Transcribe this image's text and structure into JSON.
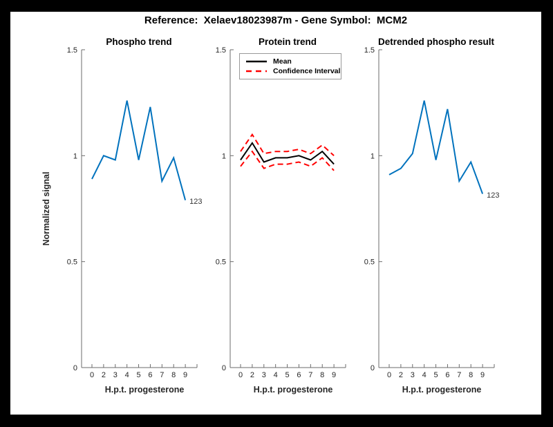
{
  "figure": {
    "title": "Reference:  Xelaev18023987m - Gene Symbol:  MCM2",
    "frame_color": "#000000",
    "canvas_color": "#ffffff"
  },
  "colors": {
    "phospho_line": "#0072BD",
    "mean_line": "#000000",
    "ci_line": "#FF0000",
    "spine": "#6b6b6b",
    "tick_text": "#262626"
  },
  "legend": {
    "position": "northwest-inside",
    "entries": [
      {
        "label": "Mean",
        "style": "solid",
        "color": "#000000"
      },
      {
        "label": "Confidence Interval",
        "style": "dashed",
        "color": "#FF0000"
      }
    ]
  },
  "chart_data": [
    {
      "type": "line",
      "title": "Phospho trend",
      "xlabel": "H.p.t. progesterone",
      "ylabel": "Normalized signal",
      "x": [
        0,
        2,
        3,
        4,
        5,
        6,
        7,
        8,
        9
      ],
      "x_tick_labels": [
        "0",
        "2",
        "3",
        "4",
        "5",
        "6",
        "7",
        "8",
        "9",
        ""
      ],
      "y_tick_values": [
        0,
        0.5,
        1,
        1.5
      ],
      "y_tick_labels": [
        "0",
        "0.5",
        "1",
        "1.5"
      ],
      "ylim": [
        0,
        1.5
      ],
      "grid": false,
      "series": [
        {
          "name": "phospho",
          "color": "#0072BD",
          "style": "solid",
          "values": [
            0.89,
            1.0,
            0.98,
            1.26,
            0.98,
            1.23,
            0.88,
            0.99,
            0.79
          ]
        }
      ],
      "end_annotation": "123"
    },
    {
      "type": "line",
      "title": "Protein trend",
      "xlabel": "H.p.t. progesterone",
      "ylabel": "Normalized signal",
      "x": [
        0,
        2,
        3,
        4,
        5,
        6,
        7,
        8,
        9
      ],
      "x_tick_labels": [
        "0",
        "2",
        "3",
        "4",
        "5",
        "6",
        "7",
        "8",
        "9",
        ""
      ],
      "y_tick_values": [
        0,
        0.5,
        1,
        1.5
      ],
      "y_tick_labels": [
        "0",
        "0.5",
        "1",
        "1.5"
      ],
      "ylim": [
        0,
        1.5
      ],
      "grid": false,
      "legend_position": "northwest",
      "series": [
        {
          "name": "Mean",
          "color": "#000000",
          "style": "solid",
          "values": [
            0.98,
            1.06,
            0.97,
            0.99,
            0.99,
            1.0,
            0.98,
            1.02,
            0.96
          ]
        },
        {
          "name": "Confidence Interval upper",
          "color": "#FF0000",
          "style": "dashed",
          "values": [
            1.02,
            1.1,
            1.01,
            1.02,
            1.02,
            1.03,
            1.01,
            1.05,
            1.0
          ]
        },
        {
          "name": "Confidence Interval lower",
          "color": "#FF0000",
          "style": "dashed",
          "values": [
            0.95,
            1.02,
            0.94,
            0.96,
            0.96,
            0.97,
            0.95,
            0.99,
            0.93
          ]
        }
      ]
    },
    {
      "type": "line",
      "title": "Detrended phospho result",
      "xlabel": "H.p.t. progesterone",
      "ylabel": "Normalized signal",
      "x": [
        0,
        2,
        3,
        4,
        5,
        6,
        7,
        8,
        9
      ],
      "x_tick_labels": [
        "0",
        "2",
        "3",
        "4",
        "5",
        "6",
        "7",
        "8",
        "9",
        ""
      ],
      "y_tick_values": [
        0,
        0.5,
        1,
        1.5
      ],
      "y_tick_labels": [
        "0",
        "0.5",
        "1",
        "1.5"
      ],
      "ylim": [
        0,
        1.5
      ],
      "grid": false,
      "series": [
        {
          "name": "detrended phospho",
          "color": "#0072BD",
          "style": "solid",
          "values": [
            0.91,
            0.94,
            1.01,
            1.26,
            0.98,
            1.22,
            0.88,
            0.97,
            0.82
          ]
        }
      ],
      "end_annotation": "123"
    }
  ]
}
